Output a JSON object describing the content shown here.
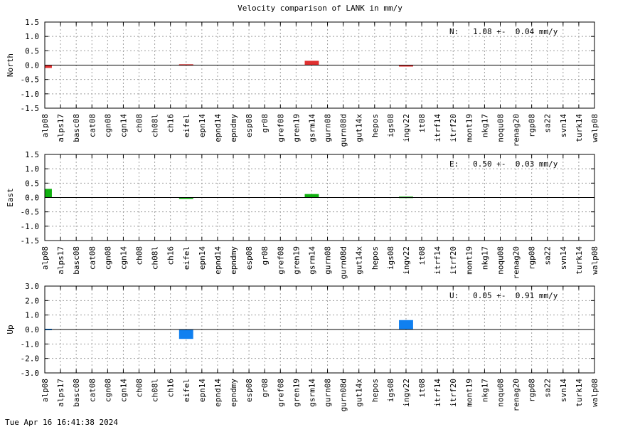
{
  "title": "Velocity comparison of LANK in mm/y",
  "timestamp": "Tue Apr 16 16:41:38 2024",
  "colors": {
    "north": "#e03030",
    "east": "#10b010",
    "up": "#1080f0"
  },
  "chart_data": [
    {
      "type": "bar",
      "ylabel": "North",
      "ylim": [
        -1.5,
        1.5
      ],
      "yticks": [
        "1.5",
        "1.0",
        "0.5",
        "0.0",
        "-0.5",
        "-1.0",
        "-1.5"
      ],
      "annotation": "N:   1.08 +-  0.04 mm/y",
      "grid": true,
      "categories": [
        "alp08",
        "alps17",
        "basc08",
        "cat08",
        "cgn08",
        "cgn14",
        "ch08",
        "ch08l",
        "ch16",
        "eifel",
        "epn14",
        "epnd14",
        "epndmy",
        "esp08",
        "gr08",
        "gref08",
        "gren19",
        "gsrm14",
        "gurn08",
        "gurn08d",
        "gut14x",
        "hepos",
        "igs08",
        "ingv22",
        "it08",
        "itrf14",
        "itrf20",
        "mont19",
        "nkg17",
        "noqu08",
        "renag20",
        "rgp08",
        "sa22",
        "svn14",
        "turk14",
        "walp08"
      ],
      "values": [
        -0.1,
        0,
        0,
        0,
        0,
        0,
        0,
        0,
        0,
        0.03,
        0,
        0,
        0,
        0,
        0,
        0,
        0,
        0.15,
        0,
        0,
        0,
        0,
        0,
        -0.05,
        0,
        0,
        0,
        0,
        0,
        0,
        0,
        0,
        0,
        0,
        0,
        0
      ]
    },
    {
      "type": "bar",
      "ylabel": "East",
      "ylim": [
        -1.5,
        1.5
      ],
      "yticks": [
        "1.5",
        "1.0",
        "0.5",
        "0.0",
        "-0.5",
        "-1.0",
        "-1.5"
      ],
      "annotation": "E:   0.50 +-  0.03 mm/y",
      "grid": true,
      "categories": [
        "alp08",
        "alps17",
        "basc08",
        "cat08",
        "cgn08",
        "cgn14",
        "ch08",
        "ch08l",
        "ch16",
        "eifel",
        "epn14",
        "epnd14",
        "epndmy",
        "esp08",
        "gr08",
        "gref08",
        "gren19",
        "gsrm14",
        "gurn08",
        "gurn08d",
        "gut14x",
        "hepos",
        "igs08",
        "ingv22",
        "it08",
        "itrf14",
        "itrf20",
        "mont19",
        "nkg17",
        "noqu08",
        "renag20",
        "rgp08",
        "sa22",
        "svn14",
        "turk14",
        "walp08"
      ],
      "values": [
        0.3,
        0,
        0,
        0,
        0,
        0,
        0,
        0,
        0,
        -0.05,
        0,
        0,
        0,
        0,
        0,
        0,
        0,
        0.12,
        0,
        0,
        0,
        0,
        0,
        0.03,
        0,
        0,
        0,
        0,
        0,
        0,
        0,
        0,
        0,
        0,
        0,
        0
      ]
    },
    {
      "type": "bar",
      "ylabel": "Up",
      "ylim": [
        -3.0,
        3.0
      ],
      "yticks": [
        "3.0",
        "2.0",
        "1.0",
        "0.0",
        "-1.0",
        "-2.0",
        "-3.0"
      ],
      "annotation": "U:   0.05 +-  0.91 mm/y",
      "grid": true,
      "categories": [
        "alp08",
        "alps17",
        "basc08",
        "cat08",
        "cgn08",
        "cgn14",
        "ch08",
        "ch08l",
        "ch16",
        "eifel",
        "epn14",
        "epnd14",
        "epndmy",
        "esp08",
        "gr08",
        "gref08",
        "gren19",
        "gsrm14",
        "gurn08",
        "gurn08d",
        "gut14x",
        "hepos",
        "igs08",
        "ingv22",
        "it08",
        "itrf14",
        "itrf20",
        "mont19",
        "nkg17",
        "noqu08",
        "renag20",
        "rgp08",
        "sa22",
        "svn14",
        "turk14",
        "walp08"
      ],
      "values": [
        0.05,
        0,
        0,
        0,
        0,
        0,
        0,
        0,
        0,
        -0.65,
        0,
        0,
        0,
        0,
        0,
        0,
        0,
        0,
        0,
        0,
        0,
        0,
        0,
        0.65,
        0,
        0,
        0,
        0,
        0,
        0,
        0,
        0,
        0,
        0,
        0,
        0
      ]
    }
  ]
}
